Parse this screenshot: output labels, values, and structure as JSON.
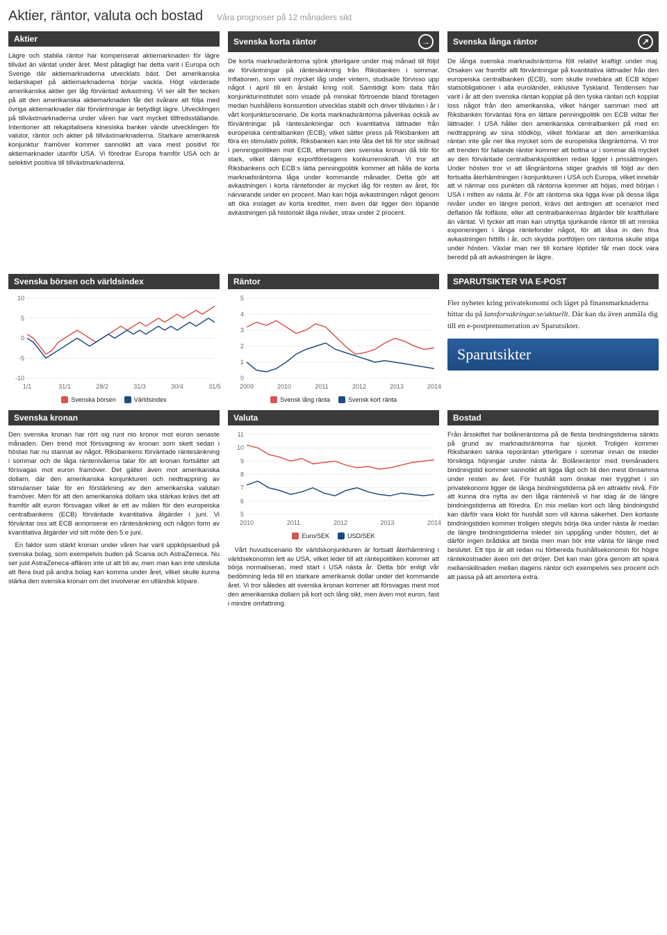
{
  "header": {
    "title": "Aktier, räntor, valuta och bostad",
    "subtitle": "Våra prognoser på 12 månaders sikt"
  },
  "sections": {
    "aktier": {
      "title": "Aktier",
      "text": "Lägre och stabila räntor har kompenserat aktiemarknaden för lägre tillväxt än väntat under året. Mest påtagligt har detta varit i Europa och Sverige där aktiemarknaderna utvecklats bäst. Det amerikanska ledarskapet på aktiemarknaderna börjar vackla. Högt värderade amerikanska aktier ger låg förväntad avkastning. Vi ser allt fler tecken på att den amerikanska aktiemarknaden får det svårare att följa med övriga aktiemarknader där förväntningar är betydligt lägre. Utvecklingen på tillväxtmarknaderna under våren har varit mycket tillfredsställande. Intentioner att rekapitalisera kinesiska banker vände utvecklingen för valutor, räntor och aktier på tillväxtmarknaderna. Starkare amerikansk konjunktur framöver kommer sannolikt att vara mest positivt för aktiemarknader utanför USA. Vi föredrar Europa framför USA och är selektivt positiva till tillväxtmarknaderna."
    },
    "korta": {
      "title": "Svenska korta räntor",
      "arrow": "→",
      "text": "De korta marknadsräntorna sjönk ytterligare under maj månad till följd av förväntningar på räntesänkning från Riksbanken i sommar. Inflationen, som varit mycket låg under vintern, studsade förvisso upp något i april till en årstakt kring noll. Samtidigt kom data från konjunkturinstitutet som visade på minskat förtroende bland företagen medan hushållens konsumtion utvecklas stabilt och driver tillväxten i år i vårt konjunkturscenario. De korta marknadsräntorna påverkas också av förväntningar på räntesänkningar och kvantitativa lättnader från europeiska centralbanken (ECB), vilket sätter press på Riksbanken att föra en stimulativ politik. Riksbanken kan inte låta det bli för stor skillnad i penningpolitiken mot ECB, eftersom den svenska kronan då blir för stark, vilket dämpar exportföretagens konkurrenskraft. Vi tror att Riksbankens och ECB:s lätta penningpolitik kommer att hålla de korta marknadsräntorna låga under kommande månader. Detta gör att avkastningen i korta räntefonder är mycket låg för resten av året, för närvarande under en procent. Man kan höja avkastningen något genom att öka inslaget av korta krediter, men även där ligger den löpande avkastningen på historiskt låga nivåer, strax under 2 procent."
    },
    "langa": {
      "title": "Svenska långa räntor",
      "arrow": "↗",
      "text": "De långa svenska marknadsräntorna föll relativt kraftigt under maj. Orsaken var framför allt förväntningar på kvantitativa lättnader från den europeiska centralbanken (ECB), som skulle innebära att ECB köper statsobligationer i alla euroländer, inklusive Tyskland. Tendensen har varit i år att den svenska räntan kopplat på den tyska räntan och kopplat loss något från den amerikanska, vilket hänger samman med att Riksbanken förväntas föra en lättare penningpolitik om ECB vidtar fler lättnader. I USA håller den amerikanska centralbanken på med en nedtrappning av sina stödköp, vilket förklarar att den amerikanska räntan inte går ner lika mycket som de europeiska långräntorna. Vi tror att trenden för fallande räntor kommer att bottna ur i sommar då mycket av den förväntade centralbankspolitiken redan ligger i prissättningen. Under hösten tror vi att långräntorna stiger gradvis till följd av den fortsatta återhämtningen i konjunkturen i USA och Europa, vilket innebär att vi närmar oss punkten då räntorna kommer att höjas, med början i USA i mitten av nästa år. För att räntorna ska ligga kvar på dessa låga nivåer under en längre period, krävs det antingen att scenariot med deflation får fotfäste, eller att centralbankernas åtgärder blir kraftfullare än väntat. Vi tycker att man kan utnyttja sjunkande räntor till att minska exponeringen i långa räntefonder något, för att låsa in den fina avkastningen hittills i år, och skydda portföljen om räntorna skulle stiga under hösten. Växlar man ner till kortare löptider får man dock vara beredd på att avkastningen är lägre."
    },
    "kronan": {
      "title": "Svenska kronan",
      "text1": "Den svenska kronan har rört sig runt nio kronor mot euron senaste månaden. Den trend mot försvagning av kronan som skett sedan i höstas har nu stannat av något. Riksbankens förväntade räntesänkning i sommar och de låga räntenivåerna talar för att kronan fortsätter att försvagas mot euron framöver. Det gäller även mot amerikanska dollarn, där den amerikanska konjunkturen och nedtrappning av stimulanser talar för en förstärkning av den amerikanska valutan framöver. Men för att den amerikanska dollarn ska stärkas krävs det att framför allt euron försvagas vilket är ett av målen för den europeiska centralbankens (ECB) förväntade kvantitativa åtgärder i juni. Vi förväntar oss att ECB annonserar en räntesänkning och någon form av kvantitativa åtgärder vid sitt möte den 5:e juni.",
      "text2": "En faktor som stärkt kronan under våren har varit uppköpsanbud på svenska bolag, som exempelvis buden på Scania och AstraZeneca. Nu ser just AstraZeneca-affären inte ut att bli av, men man kan inte utesluta att flera bud på andra bolag kan komma under året, vilket skulle kunna stärka den svenska kronan om det involverar en utländsk köpare."
    },
    "valuta": {
      "title": "Valuta",
      "text": "Vårt huvudscenario för världskonjunkturen är fortsatt återhämtning i världsekonomin lett av USA, vilket leder till att räntepolitiken kommer att börja normaliseras, med start i USA nästa år. Detta bör enligt vår bedömning leda till en starkare amerikansk dollar under det kommande året. Vi tror således att svenska kronan kommer att försvagas mest mot den amerikanska dollarn på kort och lång sikt, men även mot euron, fast i mindre omfattning."
    },
    "bostad": {
      "title": "Bostad",
      "text": "Från årsskiftet har bolåneräntorna på de flesta bindningstiderna sänkts på grund av marknadsräntorna har sjunkit. Troligen kommer Riksbanken sänka reporäntan ytterligare i sommar innan de inleder försiktiga höjningar under nästa år. Bolåneräntor med tremånaders bindningstid kommer sannolikt att ligga lågt och bli den mest lönsamma under resten av året. För hushåll som önskar mer trygghet i sin privatekonomi ligger de långa bindningstiderna på en attraktiv nivå. För att kunna dra nytta av den låga räntenivå vi har idag är de längre bindningstiderna att föredra. En mix mellan kort och lång bindningstid kan därför vara klokt för hushåll som vill känna säkerhet. Den kortaste bindningstiden kommer troligen stegvis börja öka under nästa år medan de längre bindningstiderna inleder sin uppgång under hösten, det är därför ingen brådska att binda men man bör inte vänta för länge med beslutet. Ett tips är att redan nu förbereda hushållsekonomin för högre räntekostnader även om det dröjer. Det kan man göra genom att spara mellanskillnaden mellan dagens räntor och exempelvis sex procent och att passa på att amortera extra."
    }
  },
  "charts": {
    "borsen": {
      "title": "Svenska börsen och världsindex",
      "type": "line",
      "ylim": [
        -10,
        10
      ],
      "ytick_step": 5,
      "x_labels": [
        "1/1",
        "31/1",
        "28/2",
        "31/3",
        "30/4",
        "31/5"
      ],
      "series": [
        {
          "name": "Svenska börsen",
          "color": "#d9534f",
          "data": [
            1,
            0,
            -2,
            -4,
            -3,
            -1,
            0,
            1,
            2,
            1,
            0,
            -1,
            0,
            1,
            2,
            3,
            2,
            3,
            4,
            3,
            4,
            5,
            4,
            5,
            6,
            5,
            6,
            7,
            6,
            7,
            8
          ]
        },
        {
          "name": "Världsindex",
          "color": "#1d4a82",
          "data": [
            0,
            -1,
            -3,
            -5,
            -4,
            -3,
            -2,
            -1,
            0,
            -1,
            -2,
            -1,
            0,
            1,
            0,
            1,
            2,
            1,
            2,
            1,
            2,
            3,
            2,
            3,
            2,
            3,
            4,
            3,
            4,
            5,
            4
          ]
        }
      ],
      "grid_color": "#999",
      "background_color": "#ffffff"
    },
    "rantor": {
      "title": "Räntor",
      "type": "line",
      "ylim": [
        0,
        5
      ],
      "ytick_step": 1,
      "x_labels": [
        "2009",
        "2010",
        "2011",
        "2012",
        "2013",
        "2014"
      ],
      "series": [
        {
          "name": "Svensk lång ränta",
          "color": "#d9534f",
          "data": [
            3.2,
            3.5,
            3.3,
            3.6,
            3.2,
            2.8,
            3.0,
            3.4,
            3.2,
            2.6,
            2.0,
            1.5,
            1.6,
            1.8,
            2.2,
            2.5,
            2.3,
            2.0,
            1.8,
            1.9
          ]
        },
        {
          "name": "Svensk kort ränta",
          "color": "#1d4a82",
          "data": [
            1.0,
            0.5,
            0.4,
            0.6,
            1.0,
            1.5,
            1.8,
            2.0,
            2.2,
            1.8,
            1.6,
            1.4,
            1.2,
            1.0,
            1.1,
            1.0,
            0.9,
            0.8,
            0.7,
            0.6
          ]
        }
      ],
      "grid_color": "#999",
      "background_color": "#ffffff"
    },
    "valuta": {
      "title": "Valuta",
      "type": "line",
      "ylim": [
        5,
        11
      ],
      "ytick_step": 1,
      "x_labels": [
        "2010",
        "2011",
        "2012",
        "2013",
        "2014"
      ],
      "series": [
        {
          "name": "Euro/SEK",
          "color": "#d9534f",
          "data": [
            10.2,
            10.0,
            9.5,
            9.3,
            9.0,
            9.2,
            8.8,
            8.9,
            9.0,
            8.7,
            8.5,
            8.6,
            8.4,
            8.5,
            8.7,
            8.9,
            9.0,
            9.1
          ]
        },
        {
          "name": "USD/SEK",
          "color": "#1d4a82",
          "data": [
            7.2,
            7.5,
            7.0,
            6.8,
            6.5,
            6.7,
            7.0,
            6.6,
            6.4,
            6.8,
            7.0,
            6.7,
            6.5,
            6.4,
            6.6,
            6.5,
            6.4,
            6.5
          ]
        }
      ],
      "grid_color": "#999",
      "background_color": "#ffffff"
    }
  },
  "promo": {
    "title": "SPARUTSIKTER VIA E-POST",
    "text_pre": "Fler nyheter kring privatekonomi och läget på finansmarknaderna hittar du på ",
    "link": "lansforsakringar.se/aktuellt",
    "text_post": ". Där kan du även anmäla dig till en e-postprenumeration av Sparutsikter.",
    "banner": "Sparutsikter"
  }
}
